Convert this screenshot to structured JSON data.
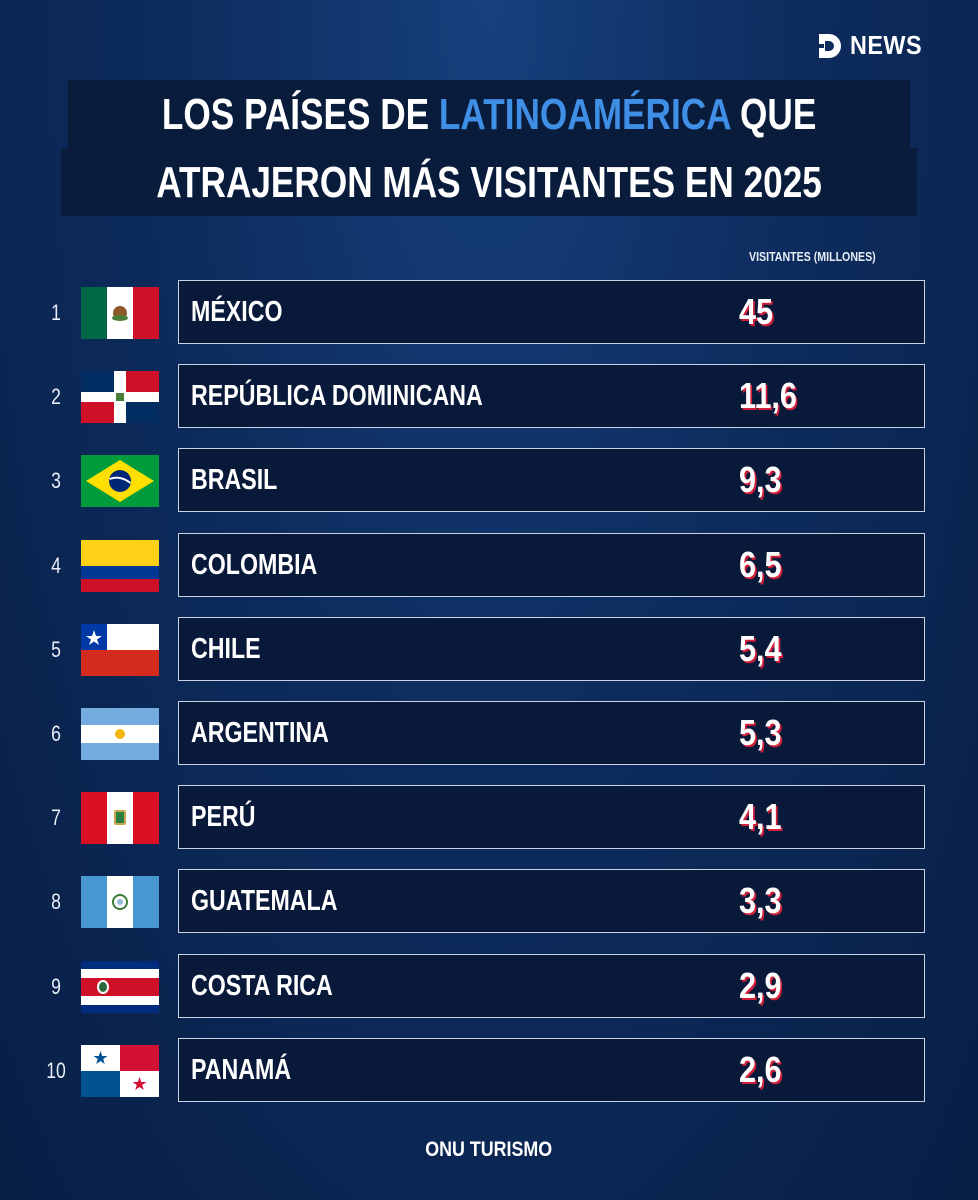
{
  "brand": {
    "logo_text": "NEWS"
  },
  "chart_data": {
    "type": "table",
    "title_parts": [
      "LOS PAÍSES DE ",
      "LATINOAMÉRICA",
      " QUE"
    ],
    "title_line2": "ATRAJERON MÁS VISITANTES EN 2025",
    "column_header": "VISITANTES (MILLONES)",
    "rows": [
      {
        "rank": "1",
        "country": "MÉXICO",
        "value": "45",
        "flag": "mexico-flag"
      },
      {
        "rank": "2",
        "country": "REPÚBLICA DOMINICANA",
        "value": "11,6",
        "flag": "dominican-republic-flag"
      },
      {
        "rank": "3",
        "country": "BRASIL",
        "value": "9,3",
        "flag": "brazil-flag"
      },
      {
        "rank": "4",
        "country": "COLOMBIA",
        "value": "6,5",
        "flag": "colombia-flag"
      },
      {
        "rank": "5",
        "country": "CHILE",
        "value": "5,4",
        "flag": "chile-flag"
      },
      {
        "rank": "6",
        "country": "ARGENTINA",
        "value": "5,3",
        "flag": "argentina-flag"
      },
      {
        "rank": "7",
        "country": "PERÚ",
        "value": "4,1",
        "flag": "peru-flag"
      },
      {
        "rank": "8",
        "country": "GUATEMALA",
        "value": "3,3",
        "flag": "guatemala-flag"
      },
      {
        "rank": "9",
        "country": "COSTA RICA",
        "value": "2,9",
        "flag": "costa-rica-flag"
      },
      {
        "rank": "10",
        "country": "PANAMÁ",
        "value": "2,6",
        "flag": "panama-flag"
      }
    ],
    "source": "ONU TURISMO"
  },
  "colors": {
    "accent": "#3f8fe6",
    "value_shadow": "#d0203a",
    "background": "#0d2c5e"
  }
}
